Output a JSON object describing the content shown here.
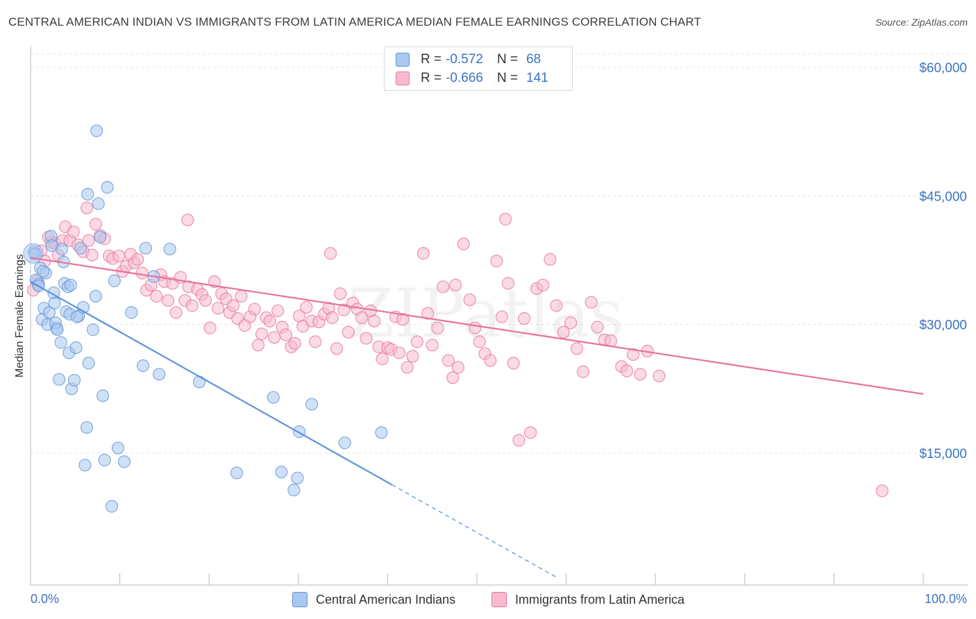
{
  "title": "CENTRAL AMERICAN INDIAN VS IMMIGRANTS FROM LATIN AMERICA MEDIAN FEMALE EARNINGS CORRELATION CHART",
  "source": "Source: ZipAtlas.com",
  "watermark": "ZIPatlas",
  "legend": {
    "rows": [
      {
        "r_label": "R =",
        "r_value": "-0.572",
        "n_label": "N =",
        "n_value": "68",
        "color": "#a9c8f0"
      },
      {
        "r_label": "R =",
        "r_value": "-0.666",
        "n_label": "N =",
        "n_value": "141",
        "color": "#f7b8cb"
      }
    ]
  },
  "bottom_legend": [
    "Central American Indians",
    "Immigrants from Latin America"
  ],
  "chart_data": {
    "type": "scatter",
    "title": "CENTRAL AMERICAN INDIAN VS IMMIGRANTS FROM LATIN AMERICA MEDIAN FEMALE EARNINGS CORRELATION CHART",
    "xlabel": "",
    "ylabel": "Median Female Earnings",
    "x_tick_labels": [
      "0.0%",
      "100.0%"
    ],
    "y_tick_labels": [
      "$15,000",
      "$30,000",
      "$45,000",
      "$60,000"
    ],
    "y_ticks": [
      15000,
      30000,
      45000,
      60000
    ],
    "xlim": [
      0,
      100
    ],
    "ylim": [
      0,
      62000
    ],
    "grid": true,
    "legend_position": "top-center",
    "series": [
      {
        "name": "Central American Indians",
        "color": "#5b93d9",
        "fill": "#aac8ef",
        "trend": {
          "x0": 0,
          "y0": 35000,
          "x1": 40.5,
          "y1": 11300,
          "dash_to_x": 59
        },
        "points": [
          [
            0.4,
            38500
          ],
          [
            0.5,
            38200
          ],
          [
            0.6,
            35200
          ],
          [
            0.9,
            34700
          ],
          [
            1.1,
            36600
          ],
          [
            1.3,
            30600
          ],
          [
            1.5,
            31900
          ],
          [
            1.7,
            36000
          ],
          [
            1.9,
            30000
          ],
          [
            2.1,
            31400
          ],
          [
            2.3,
            40300
          ],
          [
            2.4,
            39200
          ],
          [
            2.6,
            33700
          ],
          [
            2.7,
            32500
          ],
          [
            2.9,
            29600
          ],
          [
            3.2,
            23600
          ],
          [
            3.4,
            27900
          ],
          [
            3.5,
            38800
          ],
          [
            3.7,
            37300
          ],
          [
            3.8,
            34800
          ],
          [
            4.0,
            31500
          ],
          [
            4.2,
            34400
          ],
          [
            4.3,
            26700
          ],
          [
            4.5,
            34600
          ],
          [
            4.6,
            22500
          ],
          [
            4.9,
            23500
          ],
          [
            5.1,
            27300
          ],
          [
            5.4,
            31000
          ],
          [
            5.6,
            38900
          ],
          [
            5.9,
            32000
          ],
          [
            6.1,
            13600
          ],
          [
            6.3,
            18000
          ],
          [
            6.5,
            25500
          ],
          [
            7.0,
            29400
          ],
          [
            7.3,
            33300
          ],
          [
            7.6,
            44100
          ],
          [
            7.8,
            40200
          ],
          [
            8.1,
            21700
          ],
          [
            8.3,
            14200
          ],
          [
            8.6,
            46000
          ],
          [
            9.1,
            8800
          ],
          [
            9.4,
            35100
          ],
          [
            9.8,
            15600
          ],
          [
            10.5,
            14000
          ],
          [
            11.3,
            31400
          ],
          [
            12.6,
            25200
          ],
          [
            12.9,
            38900
          ],
          [
            13.8,
            35600
          ],
          [
            14.4,
            24200
          ],
          [
            15.6,
            38800
          ],
          [
            18.9,
            23300
          ],
          [
            23.1,
            12700
          ],
          [
            27.2,
            21500
          ],
          [
            28.1,
            12800
          ],
          [
            29.5,
            10700
          ],
          [
            29.9,
            12100
          ],
          [
            30.1,
            17500
          ],
          [
            31.5,
            20700
          ],
          [
            35.2,
            16200
          ],
          [
            39.3,
            17400
          ],
          [
            7.4,
            52600
          ],
          [
            6.4,
            45200
          ],
          [
            0.9,
            34500
          ],
          [
            1.4,
            36200
          ],
          [
            2.8,
            30200
          ],
          [
            4.4,
            31200
          ],
          [
            5.2,
            30900
          ],
          [
            3.0,
            29400
          ]
        ]
      },
      {
        "name": "Immigrants from Latin America",
        "color": "#e8729a",
        "fill": "#f6bccd",
        "trend": {
          "x0": 0,
          "y0": 37800,
          "x1": 100,
          "y1": 21900
        },
        "points": [
          [
            0.3,
            34000
          ],
          [
            0.5,
            38300
          ],
          [
            0.8,
            35100
          ],
          [
            1.2,
            38600
          ],
          [
            1.6,
            37400
          ],
          [
            2.0,
            40200
          ],
          [
            2.3,
            39600
          ],
          [
            2.7,
            39500
          ],
          [
            3.1,
            38100
          ],
          [
            3.6,
            39800
          ],
          [
            3.9,
            41400
          ],
          [
            4.4,
            39800
          ],
          [
            4.8,
            40800
          ],
          [
            5.3,
            39300
          ],
          [
            5.9,
            38500
          ],
          [
            6.3,
            43600
          ],
          [
            6.5,
            39800
          ],
          [
            6.9,
            38100
          ],
          [
            7.3,
            41700
          ],
          [
            7.8,
            40400
          ],
          [
            8.3,
            40000
          ],
          [
            8.8,
            38000
          ],
          [
            9.2,
            37700
          ],
          [
            9.9,
            38000
          ],
          [
            10.3,
            36200
          ],
          [
            10.7,
            36800
          ],
          [
            11.2,
            38200
          ],
          [
            11.6,
            37200
          ],
          [
            12.0,
            37600
          ],
          [
            12.5,
            36000
          ],
          [
            13.0,
            34000
          ],
          [
            13.5,
            34600
          ],
          [
            14.1,
            33300
          ],
          [
            14.6,
            35800
          ],
          [
            15.0,
            35000
          ],
          [
            15.4,
            32800
          ],
          [
            15.9,
            34800
          ],
          [
            16.3,
            31400
          ],
          [
            16.8,
            35500
          ],
          [
            17.3,
            32800
          ],
          [
            17.7,
            34400
          ],
          [
            18.1,
            32200
          ],
          [
            18.7,
            34100
          ],
          [
            19.2,
            33500
          ],
          [
            19.6,
            32800
          ],
          [
            20.1,
            29600
          ],
          [
            20.6,
            35000
          ],
          [
            21.0,
            31900
          ],
          [
            21.4,
            33600
          ],
          [
            21.9,
            33000
          ],
          [
            22.3,
            31400
          ],
          [
            22.7,
            32200
          ],
          [
            23.2,
            30700
          ],
          [
            23.6,
            33300
          ],
          [
            24.0,
            29900
          ],
          [
            24.6,
            30900
          ],
          [
            25.1,
            31800
          ],
          [
            25.5,
            27600
          ],
          [
            25.9,
            28900
          ],
          [
            26.4,
            30800
          ],
          [
            26.8,
            30400
          ],
          [
            27.3,
            28500
          ],
          [
            27.7,
            31600
          ],
          [
            28.2,
            29700
          ],
          [
            28.6,
            28800
          ],
          [
            29.2,
            27400
          ],
          [
            29.6,
            27800
          ],
          [
            30.1,
            31000
          ],
          [
            30.5,
            29800
          ],
          [
            30.9,
            32000
          ],
          [
            31.5,
            30400
          ],
          [
            31.9,
            28000
          ],
          [
            32.3,
            30300
          ],
          [
            32.9,
            31200
          ],
          [
            33.4,
            31900
          ],
          [
            33.8,
            30800
          ],
          [
            34.3,
            27200
          ],
          [
            34.7,
            33600
          ],
          [
            35.1,
            31700
          ],
          [
            35.6,
            29100
          ],
          [
            36.1,
            32500
          ],
          [
            36.6,
            31800
          ],
          [
            37.1,
            30800
          ],
          [
            37.6,
            28400
          ],
          [
            38.1,
            31600
          ],
          [
            38.5,
            30400
          ],
          [
            39.0,
            27400
          ],
          [
            39.4,
            26000
          ],
          [
            40.0,
            27300
          ],
          [
            40.4,
            27100
          ],
          [
            40.9,
            30900
          ],
          [
            41.3,
            26700
          ],
          [
            41.7,
            30600
          ],
          [
            42.2,
            25000
          ],
          [
            42.8,
            26300
          ],
          [
            43.3,
            28000
          ],
          [
            44.0,
            38300
          ],
          [
            44.5,
            31300
          ],
          [
            45.0,
            27600
          ],
          [
            45.6,
            29600
          ],
          [
            46.2,
            34400
          ],
          [
            46.8,
            25800
          ],
          [
            47.3,
            23800
          ],
          [
            47.9,
            25000
          ],
          [
            48.5,
            39400
          ],
          [
            49.2,
            32900
          ],
          [
            49.8,
            29600
          ],
          [
            50.3,
            28000
          ],
          [
            50.9,
            26600
          ],
          [
            51.5,
            25800
          ],
          [
            52.2,
            37400
          ],
          [
            52.8,
            30900
          ],
          [
            53.5,
            34800
          ],
          [
            54.1,
            25500
          ],
          [
            54.7,
            16500
          ],
          [
            55.3,
            30700
          ],
          [
            56.0,
            17400
          ],
          [
            56.7,
            34200
          ],
          [
            57.4,
            34600
          ],
          [
            58.2,
            37600
          ],
          [
            58.9,
            32200
          ],
          [
            59.7,
            29100
          ],
          [
            60.5,
            30200
          ],
          [
            61.2,
            27200
          ],
          [
            61.9,
            24500
          ],
          [
            62.8,
            32600
          ],
          [
            63.5,
            29700
          ],
          [
            64.3,
            28200
          ],
          [
            65.0,
            28100
          ],
          [
            66.2,
            25100
          ],
          [
            66.8,
            24600
          ],
          [
            67.5,
            26500
          ],
          [
            68.3,
            24200
          ],
          [
            69.1,
            26900
          ],
          [
            70.4,
            24000
          ],
          [
            95.4,
            10600
          ],
          [
            53.2,
            42300
          ],
          [
            17.6,
            42200
          ],
          [
            33.6,
            38300
          ],
          [
            47.6,
            34600
          ]
        ]
      }
    ]
  }
}
